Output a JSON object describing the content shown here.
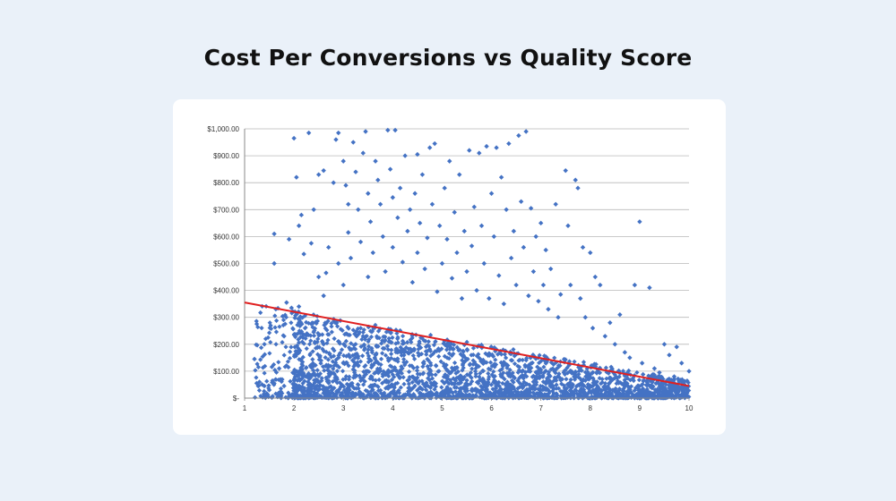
{
  "page": {
    "title": "Cost Per Conversions vs Quality Score",
    "background_color": "#eaf1f9",
    "card_color": "#ffffff"
  },
  "chart_data": {
    "type": "scatter",
    "title": "Cost Per Conversions vs Quality Score",
    "xlabel": "",
    "ylabel": "",
    "xlim": [
      1,
      10
    ],
    "ylim": [
      0,
      1000
    ],
    "x_ticks": [
      "1",
      "2",
      "3",
      "4",
      "5",
      "6",
      "7",
      "8",
      "9",
      "10"
    ],
    "y_ticks": [
      "$-",
      "$100.00",
      "$200.00",
      "$300.00",
      "$400.00",
      "$500.00",
      "$600.00",
      "$700.00",
      "$800.00",
      "$900.00",
      "$1,000.00"
    ],
    "grid": "horizontal",
    "legend": "none",
    "marker": "diamond",
    "point_color": "#4472c4",
    "trendline": {
      "type": "linear",
      "color": "#e02020",
      "points": [
        [
          1,
          355
        ],
        [
          10,
          45
        ]
      ]
    },
    "series": [
      {
        "points": [
          [
            1.2,
            145
          ],
          [
            1.3,
            60
          ],
          [
            1.4,
            45
          ],
          [
            1.4,
            200
          ],
          [
            1.5,
            30
          ],
          [
            1.6,
            55
          ],
          [
            1.6,
            500
          ],
          [
            1.6,
            610
          ],
          [
            1.7,
            110
          ],
          [
            1.7,
            20
          ],
          [
            1.8,
            230
          ],
          [
            1.8,
            45
          ],
          [
            1.85,
            355
          ],
          [
            1.9,
            590
          ],
          [
            1.95,
            335
          ],
          [
            2.0,
            5
          ],
          [
            2.0,
            965
          ],
          [
            2.05,
            820
          ],
          [
            2.1,
            340
          ],
          [
            2.1,
            640
          ],
          [
            2.15,
            680
          ],
          [
            2.2,
            535
          ],
          [
            2.3,
            985
          ],
          [
            2.35,
            575
          ],
          [
            2.4,
            700
          ],
          [
            2.5,
            830
          ],
          [
            2.5,
            450
          ],
          [
            2.6,
            845
          ],
          [
            2.6,
            380
          ],
          [
            2.65,
            465
          ],
          [
            2.7,
            560
          ],
          [
            2.8,
            800
          ],
          [
            2.85,
            960
          ],
          [
            2.9,
            985
          ],
          [
            2.9,
            500
          ],
          [
            3.0,
            420
          ],
          [
            3.0,
            880
          ],
          [
            3.05,
            790
          ],
          [
            3.1,
            615
          ],
          [
            3.1,
            720
          ],
          [
            3.15,
            520
          ],
          [
            3.2,
            950
          ],
          [
            3.25,
            840
          ],
          [
            3.3,
            700
          ],
          [
            3.35,
            580
          ],
          [
            3.4,
            910
          ],
          [
            3.45,
            990
          ],
          [
            3.5,
            760
          ],
          [
            3.5,
            450
          ],
          [
            3.55,
            655
          ],
          [
            3.6,
            540
          ],
          [
            3.65,
            880
          ],
          [
            3.7,
            810
          ],
          [
            3.75,
            720
          ],
          [
            3.8,
            600
          ],
          [
            3.85,
            470
          ],
          [
            3.9,
            995
          ],
          [
            3.95,
            850
          ],
          [
            4.0,
            745
          ],
          [
            4.0,
            560
          ],
          [
            4.05,
            995
          ],
          [
            4.1,
            670
          ],
          [
            4.15,
            780
          ],
          [
            4.2,
            505
          ],
          [
            4.25,
            900
          ],
          [
            4.3,
            620
          ],
          [
            4.35,
            700
          ],
          [
            4.4,
            430
          ],
          [
            4.45,
            760
          ],
          [
            4.5,
            905
          ],
          [
            4.5,
            540
          ],
          [
            4.55,
            650
          ],
          [
            4.6,
            830
          ],
          [
            4.65,
            480
          ],
          [
            4.7,
            595
          ],
          [
            4.75,
            930
          ],
          [
            4.8,
            720
          ],
          [
            4.85,
            945
          ],
          [
            4.9,
            395
          ],
          [
            4.95,
            640
          ],
          [
            5.0,
            500
          ],
          [
            5.05,
            780
          ],
          [
            5.1,
            590
          ],
          [
            5.15,
            880
          ],
          [
            5.2,
            445
          ],
          [
            5.25,
            690
          ],
          [
            5.3,
            540
          ],
          [
            5.35,
            830
          ],
          [
            5.4,
            370
          ],
          [
            5.45,
            620
          ],
          [
            5.5,
            470
          ],
          [
            5.55,
            920
          ],
          [
            5.6,
            565
          ],
          [
            5.65,
            710
          ],
          [
            5.7,
            400
          ],
          [
            5.75,
            910
          ],
          [
            5.8,
            640
          ],
          [
            5.85,
            500
          ],
          [
            5.9,
            935
          ],
          [
            5.95,
            370
          ],
          [
            6.0,
            760
          ],
          [
            6.05,
            600
          ],
          [
            6.1,
            930
          ],
          [
            6.15,
            455
          ],
          [
            6.2,
            820
          ],
          [
            6.25,
            350
          ],
          [
            6.3,
            700
          ],
          [
            6.35,
            945
          ],
          [
            6.4,
            520
          ],
          [
            6.45,
            620
          ],
          [
            6.5,
            420
          ],
          [
            6.55,
            975
          ],
          [
            6.6,
            730
          ],
          [
            6.65,
            560
          ],
          [
            6.7,
            990
          ],
          [
            6.75,
            380
          ],
          [
            6.8,
            705
          ],
          [
            6.85,
            470
          ],
          [
            6.9,
            600
          ],
          [
            6.95,
            360
          ],
          [
            7.0,
            650
          ],
          [
            7.05,
            420
          ],
          [
            7.1,
            550
          ],
          [
            7.15,
            330
          ],
          [
            7.2,
            480
          ],
          [
            7.3,
            720
          ],
          [
            7.35,
            300
          ],
          [
            7.4,
            385
          ],
          [
            7.5,
            845
          ],
          [
            7.55,
            640
          ],
          [
            7.6,
            420
          ],
          [
            7.7,
            810
          ],
          [
            7.75,
            780
          ],
          [
            7.8,
            370
          ],
          [
            7.85,
            560
          ],
          [
            7.9,
            300
          ],
          [
            8.0,
            540
          ],
          [
            8.05,
            260
          ],
          [
            8.1,
            450
          ],
          [
            8.2,
            420
          ],
          [
            8.3,
            230
          ],
          [
            8.4,
            280
          ],
          [
            8.5,
            200
          ],
          [
            8.6,
            310
          ],
          [
            8.7,
            170
          ],
          [
            8.8,
            150
          ],
          [
            8.9,
            420
          ],
          [
            9.0,
            655
          ],
          [
            9.05,
            130
          ],
          [
            9.2,
            410
          ],
          [
            9.3,
            110
          ],
          [
            9.4,
            95
          ],
          [
            9.5,
            200
          ],
          [
            9.6,
            160
          ],
          [
            9.7,
            80
          ],
          [
            9.75,
            190
          ],
          [
            9.8,
            60
          ],
          [
            9.85,
            130
          ],
          [
            9.9,
            30
          ],
          [
            10.0,
            100
          ]
        ]
      }
    ]
  }
}
